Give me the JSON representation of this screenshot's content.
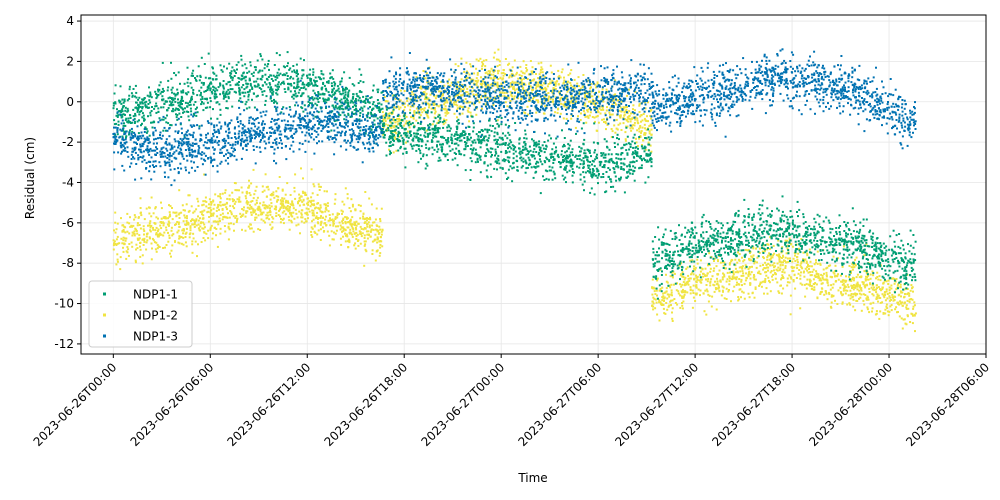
{
  "chart_data": {
    "type": "scatter",
    "title": "",
    "xlabel": "Time",
    "ylabel": "Residual (cm)",
    "x_range": [
      "2023-06-25T22:00:00",
      "2023-06-28T06:00:00"
    ],
    "ylim": [
      -12.5,
      4.3
    ],
    "y_ticks": [
      4,
      2,
      0,
      -2,
      -4,
      -6,
      -8,
      -10,
      -12
    ],
    "x_ticks": [
      "2023-06-26T00:00",
      "2023-06-26T06:00",
      "2023-06-26T12:00",
      "2023-06-26T18:00",
      "2023-06-27T00:00",
      "2023-06-27T06:00",
      "2023-06-27T12:00",
      "2023-06-27T18:00",
      "2023-06-28T00:00",
      "2023-06-28T06:00"
    ],
    "grid": true,
    "legend_position": "lower-left",
    "series": [
      {
        "name": "NDP1-1",
        "color": "#009E73",
        "segments": [
          {
            "start": "2023-06-26T00:00",
            "end": "2023-06-26T16:40",
            "points": [
              {
                "t": "2023-06-26T00:00",
                "y": -0.7
              },
              {
                "t": "2023-06-26T03:00",
                "y": -0.1
              },
              {
                "t": "2023-06-26T06:00",
                "y": 0.6
              },
              {
                "t": "2023-06-26T09:00",
                "y": 1.0
              },
              {
                "t": "2023-06-26T11:00",
                "y": 0.9
              },
              {
                "t": "2023-06-26T14:00",
                "y": 0.2
              },
              {
                "t": "2023-06-26T16:40",
                "y": -0.6
              }
            ]
          },
          {
            "start": "2023-06-26T16:40",
            "end": "2023-06-27T09:20",
            "points": [
              {
                "t": "2023-06-26T16:40",
                "y": -1.5
              },
              {
                "t": "2023-06-26T20:00",
                "y": -1.8
              },
              {
                "t": "2023-06-27T00:00",
                "y": -2.3
              },
              {
                "t": "2023-06-27T04:00",
                "y": -2.9
              },
              {
                "t": "2023-06-27T06:00",
                "y": -3.1
              },
              {
                "t": "2023-06-27T09:20",
                "y": -2.6
              }
            ]
          },
          {
            "start": "2023-06-27T09:20",
            "end": "2023-06-28T01:40",
            "points": [
              {
                "t": "2023-06-27T09:20",
                "y": -7.9
              },
              {
                "t": "2023-06-27T13:00",
                "y": -6.9
              },
              {
                "t": "2023-06-27T17:00",
                "y": -6.4
              },
              {
                "t": "2023-06-27T21:00",
                "y": -7.1
              },
              {
                "t": "2023-06-28T01:40",
                "y": -8.0
              }
            ]
          }
        ]
      },
      {
        "name": "NDP1-2",
        "color": "#F0E442",
        "segments": [
          {
            "start": "2023-06-26T00:00",
            "end": "2023-06-26T16:40",
            "points": [
              {
                "t": "2023-06-26T00:00",
                "y": -6.8
              },
              {
                "t": "2023-06-26T04:00",
                "y": -6.1
              },
              {
                "t": "2023-06-26T08:00",
                "y": -5.3
              },
              {
                "t": "2023-06-26T11:00",
                "y": -5.2
              },
              {
                "t": "2023-06-26T14:00",
                "y": -5.9
              },
              {
                "t": "2023-06-26T16:40",
                "y": -6.6
              }
            ]
          },
          {
            "start": "2023-06-26T16:40",
            "end": "2023-06-27T09:20",
            "points": [
              {
                "t": "2023-06-26T16:40",
                "y": -0.9
              },
              {
                "t": "2023-06-26T20:00",
                "y": 0.1
              },
              {
                "t": "2023-06-27T00:00",
                "y": 0.9
              },
              {
                "t": "2023-06-27T04:00",
                "y": 0.4
              },
              {
                "t": "2023-06-27T07:00",
                "y": -0.4
              },
              {
                "t": "2023-06-27T09:20",
                "y": -1.1
              }
            ]
          },
          {
            "start": "2023-06-27T09:20",
            "end": "2023-06-28T01:40",
            "points": [
              {
                "t": "2023-06-27T09:20",
                "y": -9.8
              },
              {
                "t": "2023-06-27T13:00",
                "y": -8.8
              },
              {
                "t": "2023-06-27T17:00",
                "y": -8.2
              },
              {
                "t": "2023-06-27T21:00",
                "y": -9.0
              },
              {
                "t": "2023-06-28T01:40",
                "y": -9.9
              }
            ]
          }
        ]
      },
      {
        "name": "NDP1-3",
        "color": "#0072B2",
        "segments": [
          {
            "start": "2023-06-26T00:00",
            "end": "2023-06-26T16:40",
            "points": [
              {
                "t": "2023-06-26T00:00",
                "y": -1.9
              },
              {
                "t": "2023-06-26T03:00",
                "y": -2.5
              },
              {
                "t": "2023-06-26T06:00",
                "y": -2.1
              },
              {
                "t": "2023-06-26T09:00",
                "y": -1.5
              },
              {
                "t": "2023-06-26T12:00",
                "y": -1.0
              },
              {
                "t": "2023-06-26T16:40",
                "y": -1.4
              }
            ]
          },
          {
            "start": "2023-06-26T16:40",
            "end": "2023-06-27T09:20",
            "points": [
              {
                "t": "2023-06-26T16:40",
                "y": 0.4
              },
              {
                "t": "2023-06-26T20:00",
                "y": 0.6
              },
              {
                "t": "2023-06-27T00:00",
                "y": 0.1
              },
              {
                "t": "2023-06-27T04:00",
                "y": 0.2
              },
              {
                "t": "2023-06-27T09:20",
                "y": 0.5
              }
            ]
          },
          {
            "start": "2023-06-27T09:20",
            "end": "2023-06-28T01:40",
            "points": [
              {
                "t": "2023-06-27T09:20",
                "y": -0.4
              },
              {
                "t": "2023-06-27T13:00",
                "y": 0.3
              },
              {
                "t": "2023-06-27T17:00",
                "y": 1.2
              },
              {
                "t": "2023-06-27T21:00",
                "y": 0.7
              },
              {
                "t": "2023-06-28T01:40",
                "y": -1.0
              }
            ]
          }
        ]
      }
    ]
  }
}
